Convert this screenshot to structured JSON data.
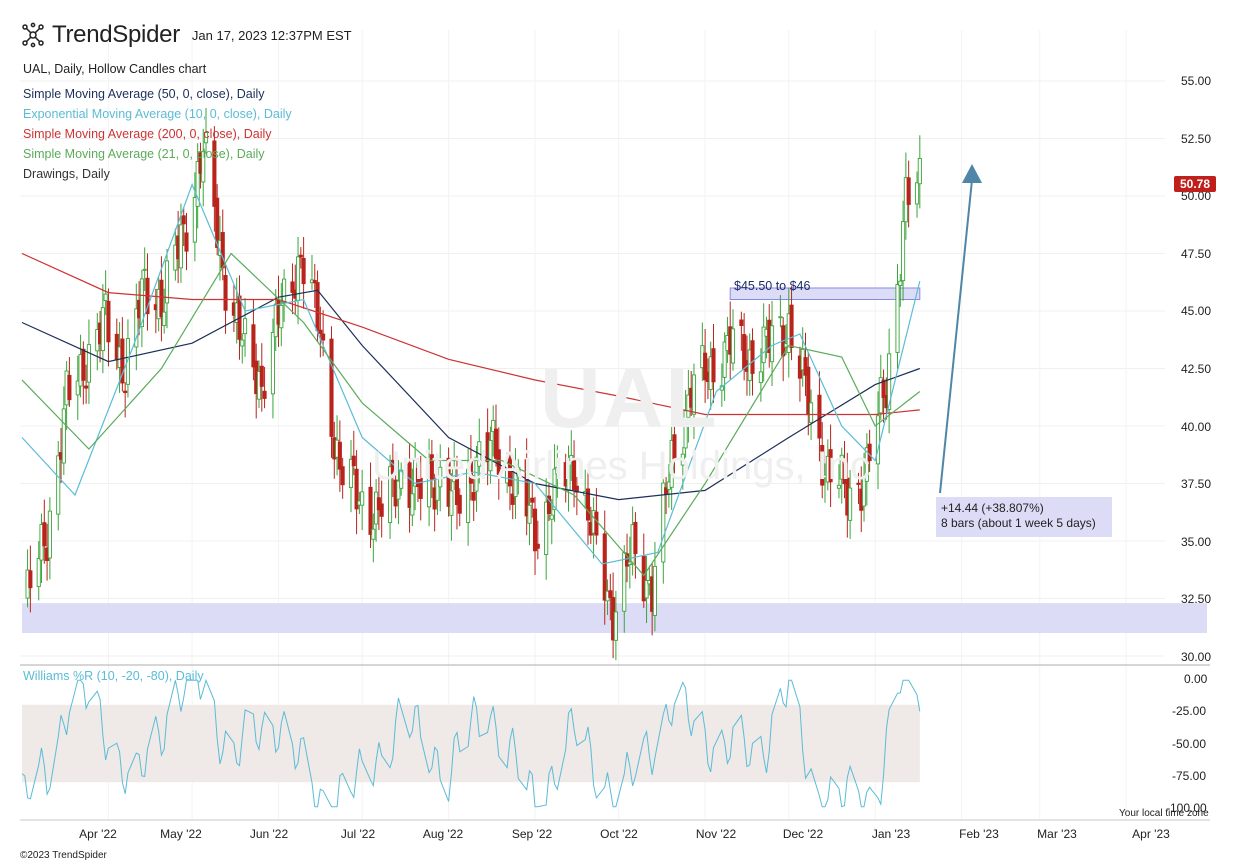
{
  "header": {
    "brand": "TrendSpider",
    "timestamp": "Jan 17, 2023 12:37PM EST",
    "chart_title": "UAL, Daily, Hollow Candles chart"
  },
  "legend": [
    {
      "label": "Simple Moving Average (50, 0, close), Daily",
      "color": "#1c2f5a"
    },
    {
      "label": "Exponential Moving Average (10, 0, close), Daily",
      "color": "#5bbcd6"
    },
    {
      "label": "Simple Moving Average (200, 0, close), Daily",
      "color": "#cc3333"
    },
    {
      "label": "Simple Moving Average (21, 0, close), Daily",
      "color": "#5aab5a"
    },
    {
      "label": "Drawings, Daily",
      "color": "#333333"
    }
  ],
  "watermark": {
    "symbol": "UAL",
    "name": "United Airlines Holdings, Inc"
  },
  "price_axis": [
    "55.00",
    "52.50",
    "50.00",
    "47.50",
    "45.00",
    "42.50",
    "40.00",
    "37.50",
    "35.00",
    "32.50",
    "30.00"
  ],
  "last_price": "50.78",
  "osc_axis": [
    "0.00",
    "-25.00",
    "-50.00",
    "-75.00",
    "-100.00"
  ],
  "months": [
    "Apr '22",
    "May '22",
    "Jun '22",
    "Jul '22",
    "Aug '22",
    "Sep '22",
    "Oct '22",
    "Nov '22",
    "Dec '22",
    "Jan '23",
    "Feb '23",
    "Mar '23",
    "Apr '23"
  ],
  "annotations": {
    "zone_label": "$45.50 to $46",
    "measure_line1": "+14.44 (+38.807%)",
    "measure_line2": "8 bars (about 1 week 5 days)"
  },
  "oscillator_label": "Williams %R (10, -20, -80), Daily",
  "timezone_label": "Your local time zone",
  "copyright": "©2023 TrendSpider",
  "colors": {
    "up": "#3aa53a",
    "down": "#b8241c",
    "zone": "#dcdcf7",
    "zone_border": "#8a8ae6",
    "arrow": "#4f86a8",
    "osc_line": "#5bbcd6",
    "osc_band": "#efe9e7"
  },
  "chart_data": {
    "type": "candlestick",
    "symbol": "UAL",
    "interval": "Daily",
    "ylim": [
      30,
      56
    ],
    "close_series": {
      "name": "UAL close (approx.)",
      "x": [
        "2022-03-03",
        "2022-03-10",
        "2022-03-17",
        "2022-03-24",
        "2022-03-31",
        "2022-04-07",
        "2022-04-14",
        "2022-04-21",
        "2022-04-28",
        "2022-05-05",
        "2022-05-12",
        "2022-05-19",
        "2022-05-26",
        "2022-06-02",
        "2022-06-09",
        "2022-06-16",
        "2022-06-23",
        "2022-06-30",
        "2022-07-07",
        "2022-07-14",
        "2022-07-21",
        "2022-07-28",
        "2022-08-04",
        "2022-08-11",
        "2022-08-18",
        "2022-08-25",
        "2022-09-01",
        "2022-09-08",
        "2022-09-15",
        "2022-09-22",
        "2022-09-29",
        "2022-10-06",
        "2022-10-13",
        "2022-10-20",
        "2022-10-27",
        "2022-11-03",
        "2022-11-10",
        "2022-11-17",
        "2022-11-24",
        "2022-12-01",
        "2022-12-08",
        "2022-12-15",
        "2022-12-22",
        "2022-12-29",
        "2023-01-05",
        "2023-01-12",
        "2023-01-17"
      ],
      "values": [
        32.5,
        35.5,
        41.0,
        43.0,
        44.5,
        42.5,
        46.0,
        45.5,
        48.5,
        52.0,
        47.0,
        43.5,
        42.0,
        45.0,
        47.5,
        44.0,
        38.0,
        37.0,
        36.0,
        38.0,
        37.0,
        38.0,
        36.5,
        38.5,
        39.0,
        37.5,
        35.5,
        37.0,
        38.5,
        35.0,
        32.0,
        34.5,
        33.0,
        38.5,
        41.5,
        42.5,
        43.5,
        43.0,
        43.5,
        44.5,
        41.0,
        38.0,
        37.0,
        38.0,
        42.0,
        49.5,
        50.78
      ]
    },
    "overlays": [
      {
        "name": "SMA 50",
        "x": [
          "2022-03-01",
          "2022-04-01",
          "2022-05-01",
          "2022-06-01",
          "2022-06-15",
          "2022-07-01",
          "2022-08-01",
          "2022-09-01",
          "2022-10-01",
          "2022-11-01",
          "2022-12-01",
          "2023-01-01",
          "2023-01-17"
        ],
        "values": [
          44.5,
          42.8,
          43.6,
          45.6,
          45.9,
          43.5,
          39.5,
          37.5,
          36.8,
          37.2,
          39.5,
          41.8,
          42.5
        ]
      },
      {
        "name": "SMA 200",
        "x": [
          "2022-03-01",
          "2022-04-01",
          "2022-05-01",
          "2022-06-01",
          "2022-07-01",
          "2022-08-01",
          "2022-09-01",
          "2022-10-01",
          "2022-11-01",
          "2022-12-01",
          "2023-01-01",
          "2023-01-17"
        ],
        "values": [
          47.5,
          45.8,
          45.5,
          45.5,
          44.3,
          42.9,
          42.0,
          41.3,
          40.5,
          40.5,
          40.5,
          40.7
        ]
      },
      {
        "name": "EMA 10",
        "x": [
          "2022-03-01",
          "2022-03-20",
          "2022-04-10",
          "2022-05-01",
          "2022-05-20",
          "2022-06-10",
          "2022-07-01",
          "2022-07-20",
          "2022-08-10",
          "2022-09-01",
          "2022-09-25",
          "2022-10-15",
          "2022-11-05",
          "2022-11-25",
          "2022-12-05",
          "2022-12-20",
          "2023-01-01",
          "2023-01-17"
        ],
        "values": [
          39.5,
          37.0,
          43.5,
          50.5,
          45.0,
          45.5,
          39.5,
          37.5,
          38.0,
          37.5,
          34.0,
          34.5,
          41.5,
          43.5,
          44.0,
          40.0,
          38.5,
          46.3
        ]
      },
      {
        "name": "SMA 21",
        "x": [
          "2022-03-01",
          "2022-03-25",
          "2022-04-20",
          "2022-05-15",
          "2022-06-10",
          "2022-07-01",
          "2022-07-25",
          "2022-08-20",
          "2022-09-15",
          "2022-10-10",
          "2022-11-01",
          "2022-12-01",
          "2022-12-20",
          "2023-01-01",
          "2023-01-17"
        ],
        "values": [
          42.0,
          39.0,
          42.5,
          47.5,
          44.5,
          41.0,
          38.5,
          38.5,
          37.0,
          33.5,
          37.5,
          43.5,
          43.0,
          40.0,
          41.5
        ]
      }
    ],
    "williams_r": {
      "name": "Williams %R (10, -20, -80)",
      "ylim": [
        -100,
        0
      ],
      "upper": -20,
      "lower": -80,
      "x": [
        "2022-03-01",
        "2022-03-10",
        "2022-03-20",
        "2022-04-01",
        "2022-04-10",
        "2022-04-25",
        "2022-05-05",
        "2022-05-15",
        "2022-06-01",
        "2022-06-15",
        "2022-07-01",
        "2022-07-15",
        "2022-08-01",
        "2022-08-15",
        "2022-09-01",
        "2022-09-15",
        "2022-10-01",
        "2022-10-20",
        "2022-11-05",
        "2022-11-20",
        "2022-12-01",
        "2022-12-10",
        "2022-12-25",
        "2023-01-01",
        "2023-01-10",
        "2023-01-17"
      ],
      "values": [
        -95,
        -70,
        -2,
        -40,
        -88,
        -10,
        -5,
        -60,
        -30,
        -95,
        -80,
        -30,
        -70,
        -20,
        -98,
        -40,
        -95,
        -20,
        -50,
        -60,
        -5,
        -90,
        -95,
        -90,
        -2,
        -5
      ]
    },
    "zones": [
      {
        "label": "$45.50 to $46",
        "from": "2022-11-10",
        "to": "2023-01-17",
        "low": 45.5,
        "high": 46.0
      },
      {
        "label": "",
        "from": "2022-03-01",
        "to": "2023-04-30",
        "low": 31.0,
        "high": 32.3
      }
    ],
    "measurement": {
      "change": "+14.44 (+38.807%)",
      "bars": "8 bars (about 1 week 5 days)"
    }
  }
}
